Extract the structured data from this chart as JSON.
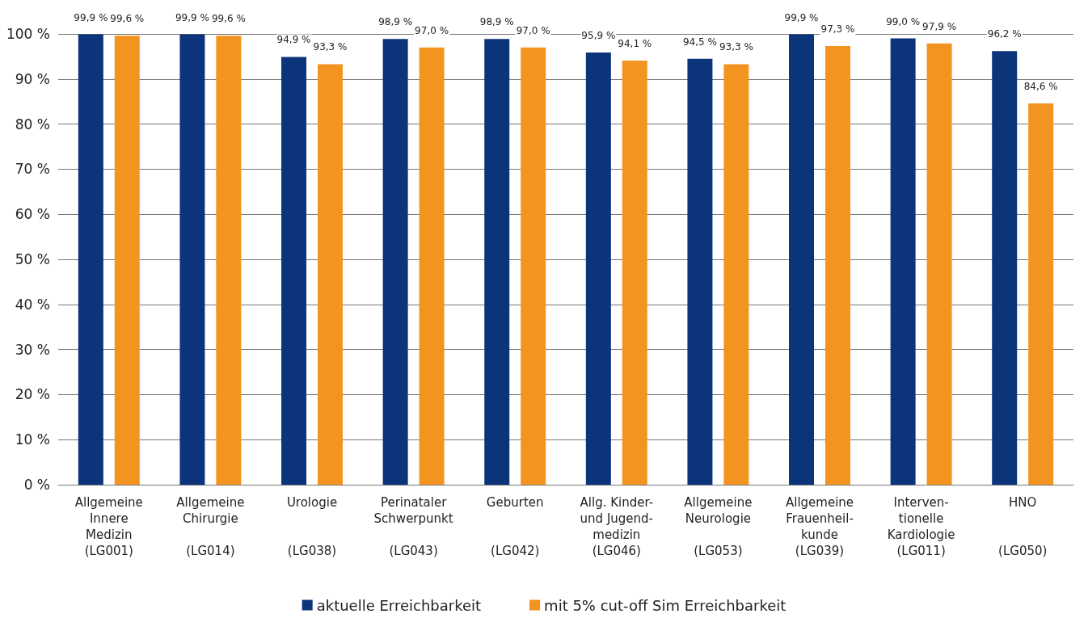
{
  "chart_data": {
    "type": "bar",
    "categories": [
      "Allgemeine\nInnere\nMedizin\n(LG001)",
      "Allgemeine\nChirurgie\n\n(LG014)",
      "Urologie\n\n\n(LG038)",
      "Perinataler\nSchwerpunkt\n\n(LG043)",
      "Geburten\n\n\n(LG042)",
      "Allg. Kinder-\nund Jugend-\nmedizin\n(LG046)",
      "Allgemeine\nNeurologie\n\n(LG053)",
      "Allgemeine\nFrauenheil-\nkunde\n(LG039)",
      "Interven-\ntionelle\nKardiologie\n(LG011)",
      "HNO\n\n\n(LG050)"
    ],
    "series": [
      {
        "name": "aktuelle Erreichbarkeit",
        "color": "#0b347a",
        "values": [
          99.9,
          99.9,
          94.9,
          98.9,
          98.9,
          95.9,
          94.5,
          99.9,
          99.0,
          96.2
        ],
        "value_labels": [
          "99,9 %",
          "99,9 %",
          "94,9 %",
          "98,9 %",
          "98,9 %",
          "95,9 %",
          "94,5 %",
          "99,9 %",
          "99,0 %",
          "96,2 %"
        ]
      },
      {
        "name": "mit 5% cut-off Sim Erreichbarkeit",
        "color": "#f39320",
        "values": [
          99.6,
          99.6,
          93.3,
          97.0,
          97.0,
          94.1,
          93.3,
          97.3,
          97.9,
          84.6
        ],
        "value_labels": [
          "99,6 %",
          "99,6 %",
          "93,3 %",
          "97,0 %",
          "97,0 %",
          "94,1 %",
          "93,3 %",
          "97,3 %",
          "97,9 %",
          "84,6 %"
        ]
      }
    ],
    "ylim": [
      0,
      100
    ],
    "yticks": [
      {
        "value": 0,
        "label": "0 %"
      },
      {
        "value": 10,
        "label": "10 %"
      },
      {
        "value": 20,
        "label": "20 %"
      },
      {
        "value": 30,
        "label": "30 %"
      },
      {
        "value": 40,
        "label": "40 %"
      },
      {
        "value": 50,
        "label": "50 %"
      },
      {
        "value": 60,
        "label": "60 %"
      },
      {
        "value": 70,
        "label": "70 %"
      },
      {
        "value": 80,
        "label": "80 %"
      },
      {
        "value": 90,
        "label": "90 %"
      },
      {
        "value": 100,
        "label": "100 %"
      }
    ],
    "grid": "y",
    "legend": "bottom"
  }
}
